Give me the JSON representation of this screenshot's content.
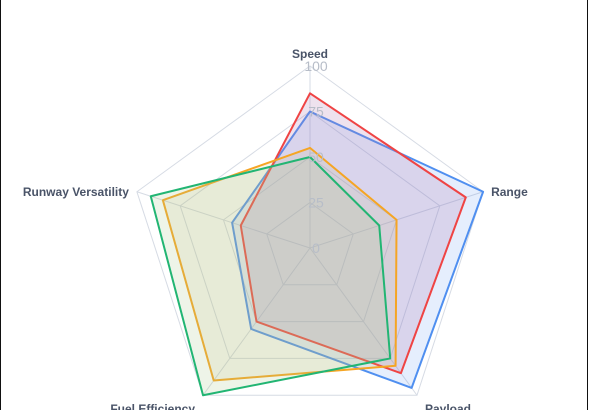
{
  "chart_data": {
    "type": "radar",
    "axes": [
      "Speed",
      "Range",
      "Payload",
      "Fuel Efficiency",
      "Runway Versatility"
    ],
    "ticks": [
      "0",
      "25",
      "50",
      "75",
      "100"
    ],
    "range": [
      0,
      100
    ],
    "grid": true,
    "legend": "none",
    "series": [
      {
        "color": "#4f8ff0",
        "fill": "#4f8ff0",
        "fill_opacity": 0.15,
        "values": [
          75,
          100,
          95,
          55,
          45
        ]
      },
      {
        "color": "#ef4444",
        "fill": "#b07bb0",
        "fill_opacity": 0.22,
        "values": [
          85,
          90,
          85,
          50,
          40
        ]
      },
      {
        "color": "#f5a524",
        "fill": "#c8b470",
        "fill_opacity": 0.15,
        "values": [
          55,
          50,
          80,
          90,
          85
        ]
      },
      {
        "color": "#22b573",
        "fill": "#a8c98a",
        "fill_opacity": 0.2,
        "values": [
          50,
          40,
          75,
          100,
          92
        ]
      }
    ]
  }
}
